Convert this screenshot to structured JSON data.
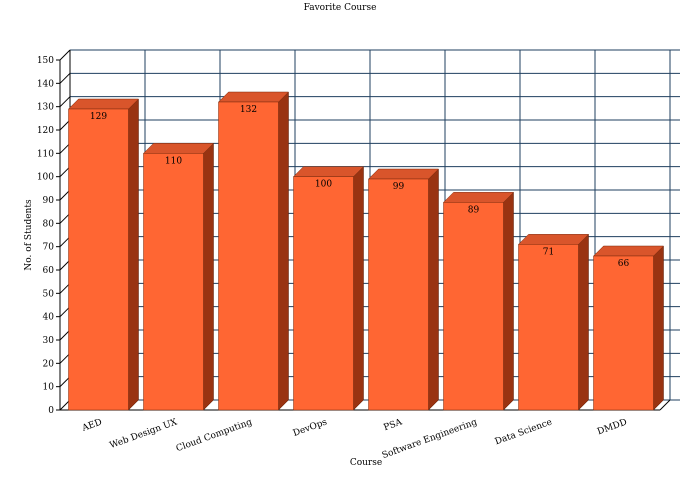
{
  "chart_data": {
    "type": "bar",
    "title": "Favorite Course",
    "xlabel": "Course",
    "ylabel": "No. of Students",
    "categories": [
      "AED",
      "Web Design UX",
      "Cloud Computing",
      "DevOps",
      "PSA",
      "Software Engineering",
      "Data Science",
      "DMDD"
    ],
    "values": [
      129,
      110,
      132,
      100,
      99,
      89,
      71,
      66
    ],
    "ylim": [
      0,
      150
    ],
    "ytick_step": 10,
    "grid": true,
    "legend": "none",
    "style_3d": true,
    "colors": {
      "bar_front": "#ff6633",
      "bar_top": "#d9552b",
      "bar_side": "#993311",
      "grid": "#1f3f5f",
      "axis": "#000000"
    }
  }
}
